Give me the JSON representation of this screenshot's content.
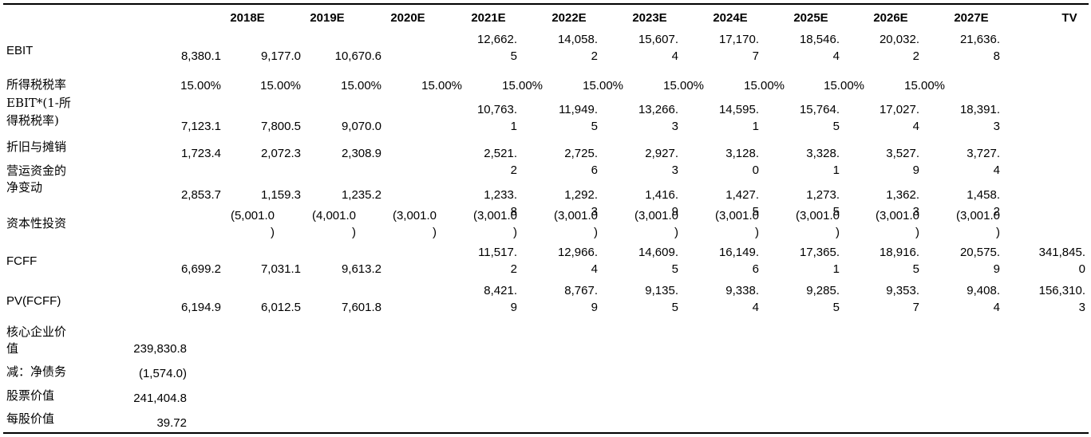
{
  "table": {
    "columns": [
      "2018E",
      "2019E",
      "2020E",
      "2021E",
      "2022E",
      "2023E",
      "2024E",
      "2025E",
      "2026E",
      "2027E",
      "TV"
    ],
    "rows": [
      {
        "label": "EBIT",
        "cells": [
          "8,380.1",
          "9,177.0",
          "10,670.6",
          "12,662.5",
          "14,058.2",
          "15,607.4",
          "17,170.7",
          "18,546.4",
          "20,032.2",
          "21,636.8",
          ""
        ]
      },
      {
        "label": "所得税税率",
        "cells": [
          "15.00%",
          "15.00%",
          "15.00%",
          "15.00%",
          "15.00%",
          "15.00%",
          "15.00%",
          "15.00%",
          "15.00%",
          "15.00%",
          ""
        ]
      },
      {
        "label": "EBIT*(1-所得税税率)",
        "cells": [
          "7,123.1",
          "7,800.5",
          "9,070.0",
          "10,763.1",
          "11,949.5",
          "13,266.3",
          "14,595.1",
          "15,764.5",
          "17,027.4",
          "18,391.3",
          ""
        ]
      },
      {
        "label": "折旧与摊销",
        "cells": [
          "1,723.4",
          "2,072.3",
          "2,308.9",
          "2,521.2",
          "2,725.6",
          "2,927.3",
          "3,128.0",
          "3,328.1",
          "3,527.9",
          "3,727.4",
          ""
        ]
      },
      {
        "label": "营运资金的净变动",
        "cells": [
          "2,853.7",
          "1,159.3",
          "1,235.2",
          "1,233.8",
          "1,292.3",
          "1,416.9",
          "1,427.5",
          "1,273.5",
          "1,362.3",
          "1,458.2",
          ""
        ]
      },
      {
        "label": "资本性投资",
        "cells": [
          "(5,001.0)",
          "(4,001.0)",
          "(3,001.0)",
          "(3,001.0)",
          "(3,001.0)",
          "(3,001.0)",
          "(3,001.0)",
          "(3,001.0)",
          "(3,001.0)",
          "(3,001.0)",
          ""
        ]
      },
      {
        "label": "FCFF",
        "cells": [
          "6,699.2",
          "7,031.1",
          "9,613.2",
          "11,517.2",
          "12,966.4",
          "14,609.5",
          "16,149.6",
          "17,365.1",
          "18,916.5",
          "20,575.9",
          "341,845.0"
        ]
      },
      {
        "label": "PV(FCFF)",
        "cells": [
          "6,194.9",
          "6,012.5",
          "7,601.8",
          "8,421.9",
          "8,767.9",
          "9,135.5",
          "9,338.4",
          "9,285.5",
          "9,353.7",
          "9,408.4",
          "156,310.3"
        ]
      }
    ],
    "summary": [
      {
        "label": "核心企业价值",
        "value": "239,830.8"
      },
      {
        "label": "减：净债务",
        "value": "(1,574.0)"
      },
      {
        "label": "股票价值",
        "value": "241,404.8"
      },
      {
        "label": "每股价值",
        "value": "39.72"
      }
    ]
  }
}
